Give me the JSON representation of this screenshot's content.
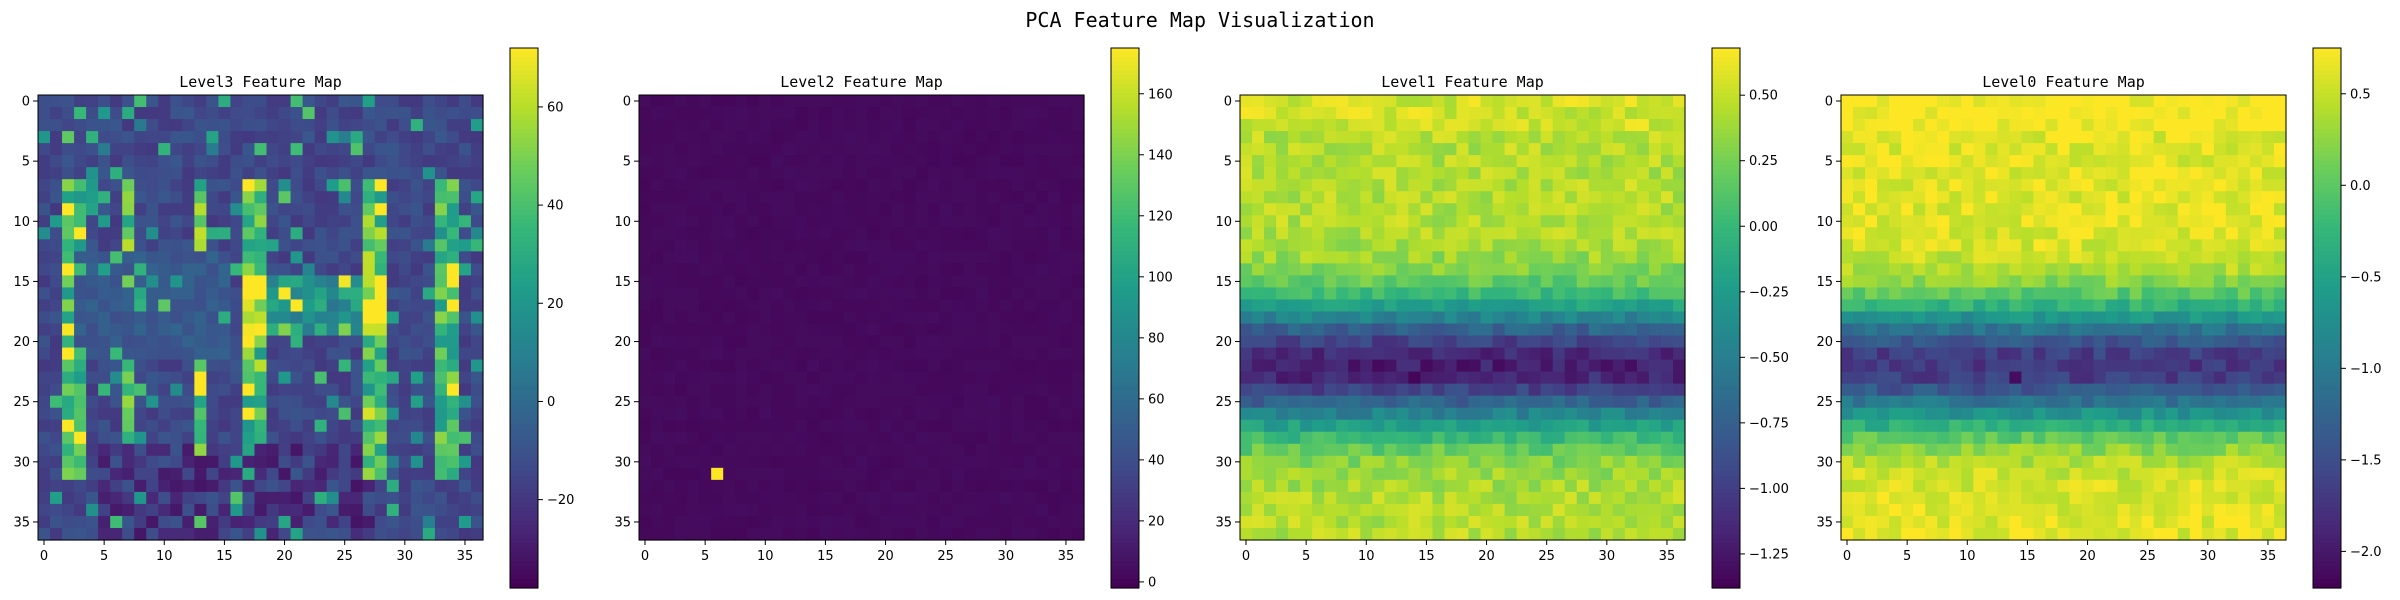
{
  "figure": {
    "title": "PCA Feature Map Visualization"
  },
  "colormap": {
    "name": "viridis",
    "stops": [
      "#440154",
      "#482777",
      "#3f4a8a",
      "#31678e",
      "#26838f",
      "#1f9d8a",
      "#35b779",
      "#6cce5a",
      "#b6de2b",
      "#fde725"
    ]
  },
  "chart_data": [
    {
      "type": "heatmap",
      "title": "Level3 Feature Map",
      "grid_size": 37,
      "xticks": [
        0,
        5,
        10,
        15,
        20,
        25,
        30,
        35
      ],
      "yticks": [
        0,
        5,
        10,
        15,
        20,
        25,
        30,
        35
      ],
      "vmin": -38,
      "vmax": 72,
      "colorbar_ticks": [
        -20,
        0,
        20,
        40,
        60
      ],
      "pattern": "Background ~-20; bright vertical streaks at columns 2-3, 7, 13, 17-18, 27-28, 33-34 across rows 7-31; dark diagonal band near rows 13-21, columns 3-15; hot spots up to ~70 around rows 15-19, columns 17-28"
    },
    {
      "type": "heatmap",
      "title": "Level2 Feature Map",
      "grid_size": 37,
      "xticks": [
        0,
        5,
        10,
        15,
        20,
        25,
        30,
        35
      ],
      "yticks": [
        0,
        5,
        10,
        15,
        20,
        25,
        30,
        35
      ],
      "vmin": -2,
      "vmax": 175,
      "colorbar_ticks": [
        0,
        20,
        40,
        60,
        80,
        100,
        120,
        140,
        160
      ],
      "pattern": "Near-uniform value ~2 everywhere; single outlier pixel ~175 at row 31, column 6"
    },
    {
      "type": "heatmap",
      "title": "Level1 Feature Map",
      "grid_size": 37,
      "xticks": [
        0,
        5,
        10,
        15,
        20,
        25,
        30,
        35
      ],
      "yticks": [
        0,
        5,
        10,
        15,
        20,
        25,
        30,
        35
      ],
      "vmin": -1.38,
      "vmax": 0.68,
      "colorbar_ticks": [
        0.5,
        0.25,
        0.0,
        -0.25,
        -0.5,
        -0.75,
        -1.0,
        -1.25
      ],
      "colorbar_tick_labels": [
        "0.50",
        "0.25",
        "0.00",
        "−0.25",
        "−0.50",
        "−0.75",
        "−1.00",
        "−1.25"
      ],
      "pattern": "Bright (~0.5) at top and bottom rows, dark horizontal band (~-1.1) centred near row 22, minimum ~-1.35 near row 23, column 14"
    },
    {
      "type": "heatmap",
      "title": "Level0 Feature Map",
      "grid_size": 37,
      "xticks": [
        0,
        5,
        10,
        15,
        20,
        25,
        30,
        35
      ],
      "yticks": [
        0,
        5,
        10,
        15,
        20,
        25,
        30,
        35
      ],
      "vmin": -2.2,
      "vmax": 0.75,
      "colorbar_ticks": [
        0.5,
        0.0,
        -0.5,
        -1.0,
        -1.5,
        -2.0
      ],
      "colorbar_tick_labels": [
        "0.5",
        "0.0",
        "−0.5",
        "−1.0",
        "−1.5",
        "−2.0"
      ],
      "pattern": "Bright (~0.6) at top and bottom rows, dark horizontal band (~-1.7) centred near row 22, minimum ~-2.1 near row 23, column 14"
    }
  ]
}
